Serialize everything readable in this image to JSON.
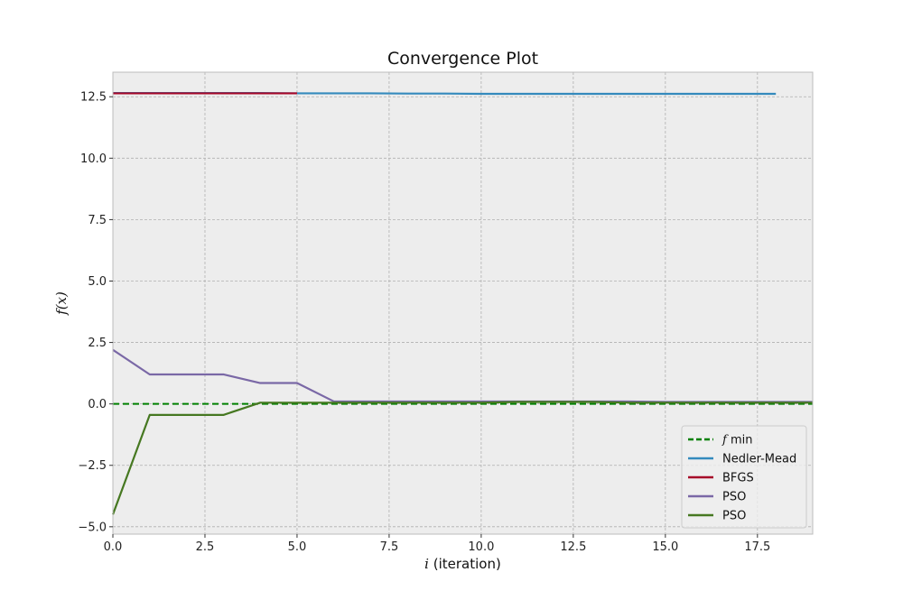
{
  "chart_data": {
    "type": "line",
    "title": "Convergence Plot",
    "xlabel_math": "i",
    "xlabel_text": " (iteration)",
    "ylabel": "f(x)",
    "xlim": [
      0,
      19
    ],
    "ylim": [
      -5.3,
      13.5
    ],
    "xticks": [
      0,
      2.5,
      5,
      7.5,
      10,
      12.5,
      15,
      17.5
    ],
    "yticks": [
      -5,
      -2.5,
      0,
      2.5,
      5,
      7.5,
      10,
      12.5
    ],
    "xtick_labels": [
      "0.0",
      "2.5",
      "5.0",
      "7.5",
      "10.0",
      "12.5",
      "15.0",
      "17.5"
    ],
    "ytick_labels": [
      "−5.0",
      "−2.5",
      "0.0",
      "2.5",
      "5.0",
      "7.5",
      "10.0",
      "12.5"
    ],
    "grid": true,
    "legend_position": "lower-right",
    "hline": {
      "name_math": "f",
      "name_text": " min",
      "y": 0,
      "color": "#008000",
      "style": "dashed"
    },
    "series": [
      {
        "name": "Nedler-Mead",
        "color": "#348ABD",
        "x": [
          0,
          1,
          2,
          3,
          4,
          5,
          6,
          7,
          8,
          9,
          10,
          11,
          12,
          13,
          14,
          15,
          16,
          17,
          18
        ],
        "y": [
          12.65,
          12.65,
          12.65,
          12.65,
          12.65,
          12.64,
          12.64,
          12.64,
          12.63,
          12.63,
          12.62,
          12.62,
          12.62,
          12.62,
          12.62,
          12.62,
          12.62,
          12.62,
          12.62
        ]
      },
      {
        "name": "BFGS",
        "color": "#A60628",
        "x": [
          0,
          1,
          2,
          3,
          4,
          5
        ],
        "y": [
          12.64,
          12.64,
          12.64,
          12.64,
          12.64,
          12.64
        ]
      },
      {
        "name": "PSO",
        "color": "#7A68A6",
        "x": [
          0,
          1,
          2,
          3,
          4,
          5,
          6,
          7,
          8,
          9,
          10,
          11,
          12,
          13,
          14,
          15,
          16,
          17,
          18,
          19
        ],
        "y": [
          2.2,
          1.2,
          1.2,
          1.2,
          0.85,
          0.85,
          0.1,
          0.1,
          0.1,
          0.1,
          0.1,
          0.1,
          0.1,
          0.1,
          0.1,
          0.08,
          0.08,
          0.08,
          0.08,
          0.08
        ]
      },
      {
        "name": "PSO",
        "color": "#467821",
        "x": [
          0,
          1,
          2,
          3,
          4,
          5,
          6,
          7,
          8,
          9,
          10,
          11,
          12,
          13,
          14,
          15,
          16,
          17,
          18,
          19
        ],
        "y": [
          -4.5,
          -0.45,
          -0.45,
          -0.45,
          0.05,
          0.05,
          0.05,
          0.05,
          0.05,
          0.05,
          0.05,
          0.08,
          0.08,
          0.08,
          0.05,
          0.05,
          0.05,
          0.05,
          0.05,
          0.05
        ]
      }
    ]
  },
  "colors": {
    "axes_background": "#EDEDED",
    "grid": "#B0B0B0",
    "spine": "#BCBCBC"
  }
}
